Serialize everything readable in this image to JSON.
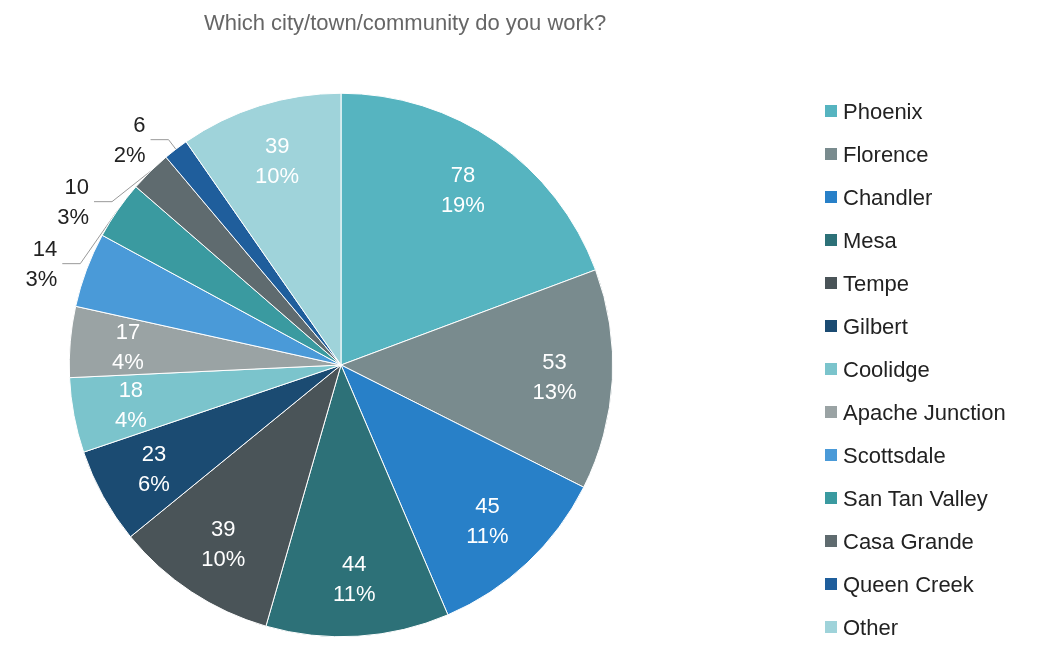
{
  "chart_data": {
    "type": "pie",
    "title": "Which city/town/community do you work?",
    "categories": [
      "Phoenix",
      "Florence",
      "Chandler",
      "Mesa",
      "Tempe",
      "Gilbert",
      "Coolidge",
      "Apache Junction",
      "Scottsdale",
      "San Tan Valley",
      "Casa Grande",
      "Queen Creek",
      "Other"
    ],
    "values": [
      78,
      53,
      45,
      44,
      39,
      23,
      18,
      17,
      18,
      14,
      10,
      6,
      39
    ],
    "colors": [
      "#56b4c0",
      "#798b8e",
      "#2880c8",
      "#2d7178",
      "#4a5458",
      "#1b4b72",
      "#7bc4cc",
      "#9aa3a4",
      "#4a9ad8",
      "#3a9aa0",
      "#5f6b6f",
      "#1f5e9c",
      "#9fd3da"
    ],
    "value_labels": [
      "78\n19%",
      "53\n13%",
      "45\n11%",
      "44\n11%",
      "39\n10%",
      "23\n6%",
      "18\n4%",
      "17\n4%",
      null,
      "14\n3%",
      "10\n3%",
      "6\n2%",
      "39\n10%"
    ],
    "legend": "right"
  }
}
